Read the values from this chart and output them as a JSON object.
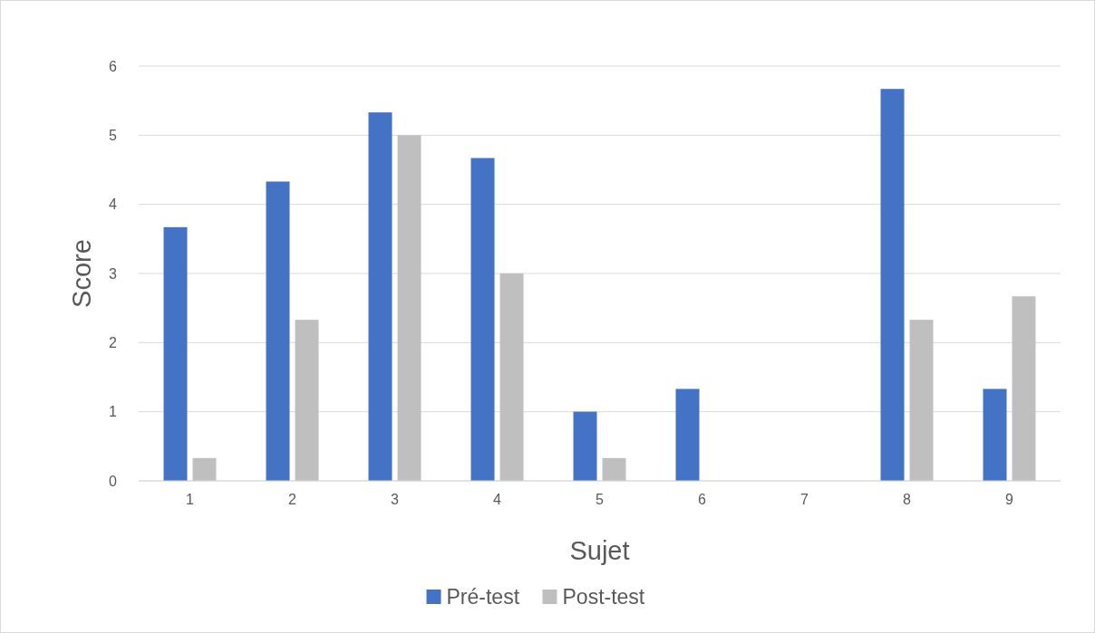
{
  "chart_data": {
    "type": "bar",
    "xlabel": "Sujet",
    "ylabel": "Score",
    "categories": [
      "1",
      "2",
      "3",
      "4",
      "5",
      "6",
      "7",
      "8",
      "9"
    ],
    "series": [
      {
        "name": "Pré-test",
        "color": "#4472c4",
        "values": [
          3.67,
          4.33,
          5.33,
          4.67,
          1,
          1.33,
          0,
          5.67,
          1.33
        ]
      },
      {
        "name": "Post-test",
        "color": "#bfbfbf",
        "values": [
          0.33,
          2.33,
          5,
          3,
          0.33,
          0,
          0,
          2.33,
          2.67
        ]
      }
    ],
    "ylim": [
      0,
      6
    ],
    "yticks": [
      0,
      1,
      2,
      3,
      4,
      5,
      6
    ],
    "grid": "y",
    "legend": "bottom"
  }
}
